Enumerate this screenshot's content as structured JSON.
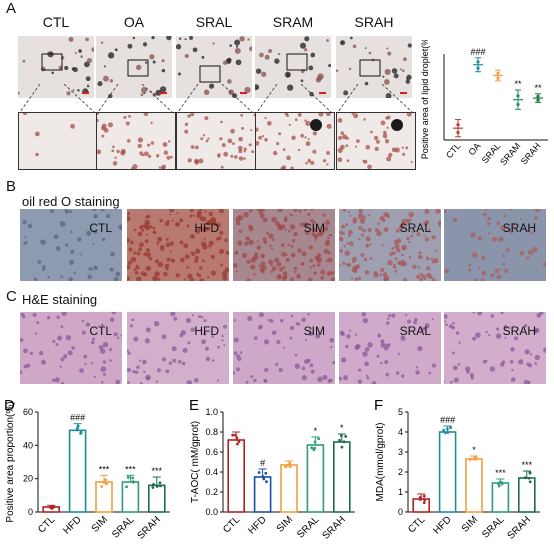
{
  "panel_a": {
    "letter": "A",
    "groups": [
      "CTL",
      "OA",
      "SRAL",
      "SRAM",
      "SRAH"
    ],
    "chart_data": {
      "type": "scatter",
      "ylabel": "Positive area of lipid droplet(%)",
      "categories": [
        "CTL",
        "OA",
        "SRAL",
        "SRAM",
        "SRAH"
      ],
      "means": [
        2.2,
        14.0,
        12.0,
        7.5,
        7.8
      ],
      "sd": [
        1.6,
        1.3,
        1.0,
        1.8,
        0.8
      ],
      "colors": [
        "#c0392b",
        "#1a8f9a",
        "#f0a040",
        "#1b8f6a",
        "#1b7f3a"
      ],
      "annotations": [
        "",
        "###",
        "",
        "**",
        "**"
      ]
    }
  },
  "panel_b": {
    "letter": "B",
    "title": "oil red O staining",
    "groups": [
      "CTL",
      "HFD",
      "SIM",
      "SRAL",
      "SRAH"
    ]
  },
  "panel_c": {
    "letter": "C",
    "title": "H&E staining",
    "groups": [
      "CTL",
      "HFD",
      "SIM",
      "SRAL",
      "SRAH"
    ]
  },
  "chart_data": [
    {
      "type": "bar",
      "letter": "D",
      "ylabel": "Positive area proportion(%)",
      "categories": [
        "CTL",
        "HFD",
        "SIM",
        "SRAL",
        "SRAH"
      ],
      "values": [
        3,
        49,
        18,
        18,
        16
      ],
      "sd": [
        1,
        4,
        4,
        4,
        5
      ],
      "ylim": [
        0,
        60
      ],
      "yticks": [
        0,
        20,
        40,
        60
      ],
      "annotations": [
        "",
        "###",
        "***",
        "***",
        "***"
      ],
      "colors": [
        "#b22222",
        "#1a8f9a",
        "#f0a040",
        "#2e9c7a",
        "#1f6b4a"
      ]
    },
    {
      "type": "bar",
      "letter": "E",
      "ylabel": "T-AOC( mM/gprot)",
      "categories": [
        "CTL",
        "HFD",
        "SIM",
        "SRAL",
        "SRAH"
      ],
      "values": [
        0.72,
        0.35,
        0.47,
        0.67,
        0.7
      ],
      "sd": [
        0.08,
        0.08,
        0.04,
        0.08,
        0.08
      ],
      "ylim": [
        0,
        1.0
      ],
      "yticks": [
        0.0,
        0.2,
        0.4,
        0.6,
        0.8,
        1.0
      ],
      "annotations": [
        "",
        "#",
        "",
        "*",
        "*"
      ],
      "colors": [
        "#b22222",
        "#1a4fa0",
        "#f0a040",
        "#2e9c7a",
        "#1f6b4a"
      ]
    },
    {
      "type": "bar",
      "letter": "F",
      "ylabel": "MDA(mmol/gprot)",
      "categories": [
        "CTL",
        "HFD",
        "SIM",
        "SRAL",
        "SRAH"
      ],
      "values": [
        0.65,
        4.0,
        2.65,
        1.45,
        1.7
      ],
      "sd": [
        0.25,
        0.3,
        0.15,
        0.2,
        0.35
      ],
      "ylim": [
        0,
        5
      ],
      "yticks": [
        0,
        1,
        2,
        3,
        4,
        5
      ],
      "annotations": [
        "",
        "###",
        "*",
        "***",
        "***"
      ],
      "colors": [
        "#b22222",
        "#1a8f9a",
        "#f0a040",
        "#2e9c7a",
        "#1f6b4a"
      ]
    }
  ]
}
